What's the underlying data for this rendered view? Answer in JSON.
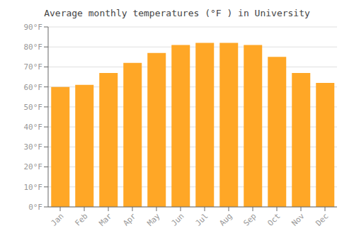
{
  "chart_data": {
    "type": "bar",
    "title": "Average monthly temperatures (°F ) in University",
    "categories": [
      "Jan",
      "Feb",
      "Mar",
      "Apr",
      "May",
      "Jun",
      "Jul",
      "Aug",
      "Sep",
      "Oct",
      "Nov",
      "Dec"
    ],
    "values": [
      60,
      61,
      67,
      72,
      77,
      81,
      82,
      82,
      81,
      75,
      67,
      62
    ],
    "color": "#FFA726",
    "ylim": [
      0,
      90
    ],
    "yticks": [
      {
        "value": 0,
        "label": "0°F"
      },
      {
        "value": 10,
        "label": "10°F"
      },
      {
        "value": 20,
        "label": "20°F"
      },
      {
        "value": 30,
        "label": "30°F"
      },
      {
        "value": 40,
        "label": "40°F"
      },
      {
        "value": 50,
        "label": "50°F"
      },
      {
        "value": 60,
        "label": "60°F"
      },
      {
        "value": 70,
        "label": "70°F"
      },
      {
        "value": 80,
        "label": "80°F"
      },
      {
        "value": 90,
        "label": "90°F"
      }
    ],
    "grid": true
  }
}
